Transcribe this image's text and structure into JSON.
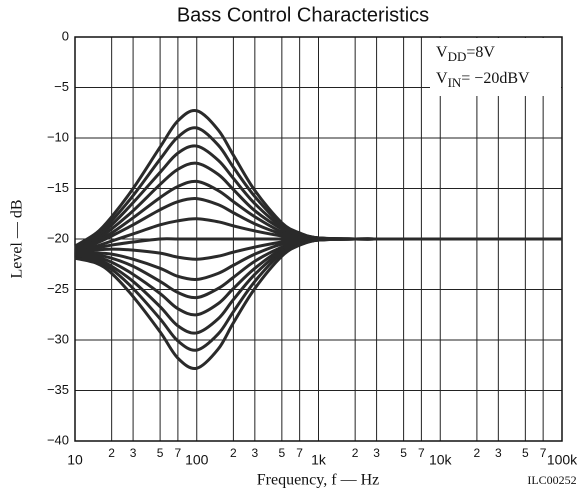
{
  "chart_data": {
    "type": "line",
    "title": "Bass Control Characteristics",
    "xlabel": "Frequency, f — Hz",
    "ylabel": "Level — dB",
    "code": "ILC00252",
    "annotations": [
      {
        "base": "V",
        "sub": "DD",
        "rest": "=8V"
      },
      {
        "base": "V",
        "sub": "IN",
        "rest": "= −20dBV"
      }
    ],
    "xscale": "log",
    "grid": true,
    "color": "#2a2a2a",
    "x": [
      10,
      15,
      20,
      30,
      50,
      70,
      100,
      150,
      200,
      300,
      500,
      700,
      1000,
      2000,
      5000,
      100000
    ],
    "xlim": [
      10,
      100000
    ],
    "xticks": [
      10,
      {
        "value": 20,
        "label": "2"
      },
      {
        "value": 30,
        "label": "3"
      },
      {
        "value": 50,
        "label": "5"
      },
      {
        "value": 70,
        "label": "7"
      },
      100,
      {
        "value": 200,
        "label": "2"
      },
      {
        "value": 300,
        "label": "3"
      },
      {
        "value": 500,
        "label": "5"
      },
      {
        "value": 700,
        "label": "7"
      },
      {
        "value": 1000,
        "label": "1k"
      },
      {
        "value": 2000,
        "label": "2"
      },
      {
        "value": 3000,
        "label": "3"
      },
      {
        "value": 5000,
        "label": "5"
      },
      {
        "value": 7000,
        "label": "7"
      },
      {
        "value": 10000,
        "label": "10k"
      },
      {
        "value": 20000,
        "label": "2"
      },
      {
        "value": 30000,
        "label": "3"
      },
      {
        "value": 50000,
        "label": "5"
      },
      {
        "value": 70000,
        "label": "7"
      },
      {
        "value": 100000,
        "label": "100k"
      }
    ],
    "ylim": [
      -40,
      0
    ],
    "yticks": [
      0,
      {
        "value": -5,
        "label": "−5"
      },
      {
        "value": -10,
        "label": "−10"
      },
      {
        "value": -15,
        "label": "−15"
      },
      {
        "value": -20,
        "label": "−20"
      },
      {
        "value": -25,
        "label": "−25"
      },
      {
        "value": -30,
        "label": "−30"
      },
      {
        "value": -35,
        "label": "−35"
      },
      {
        "value": -40,
        "label": "−40"
      }
    ],
    "series": [
      {
        "values": [
          -20.7,
          -19.4,
          -17.8,
          -15.0,
          -10.9,
          -8.3,
          -7.3,
          -9.2,
          -11.7,
          -15.2,
          -18.4,
          -19.4,
          -19.9,
          -20,
          -20,
          -20
        ]
      },
      {
        "values": [
          -20.8,
          -19.6,
          -18.2,
          -15.7,
          -12.1,
          -9.9,
          -9.0,
          -10.7,
          -12.9,
          -15.8,
          -18.6,
          -19.5,
          -19.9,
          -20,
          -20,
          -20
        ]
      },
      {
        "values": [
          -20.8,
          -19.8,
          -18.6,
          -16.4,
          -13.4,
          -11.5,
          -10.8,
          -12.2,
          -14.0,
          -16.5,
          -18.8,
          -19.5,
          -19.9,
          -20,
          -20,
          -20
        ]
      },
      {
        "values": [
          -20.9,
          -20.0,
          -19.0,
          -17.2,
          -14.6,
          -13.1,
          -12.5,
          -13.6,
          -15.1,
          -17.2,
          -19.0,
          -19.6,
          -19.9,
          -20,
          -20,
          -20
        ]
      },
      {
        "values": [
          -21.0,
          -20.2,
          -19.4,
          -17.9,
          -15.9,
          -14.8,
          -14.3,
          -15.2,
          -16.3,
          -17.8,
          -19.3,
          -19.7,
          -19.9,
          -20,
          -20,
          -20
        ]
      },
      {
        "values": [
          -21.1,
          -20.4,
          -19.7,
          -18.6,
          -17.1,
          -16.3,
          -16.0,
          -16.6,
          -17.4,
          -18.5,
          -19.5,
          -19.8,
          -20.0,
          -20,
          -20,
          -20
        ]
      },
      {
        "values": [
          -21.2,
          -20.7,
          -20.2,
          -19.5,
          -18.6,
          -18.2,
          -18.0,
          -18.3,
          -18.7,
          -19.2,
          -19.7,
          -19.9,
          -20.0,
          -20,
          -20,
          -20
        ]
      },
      {
        "values": [
          -21.3,
          -20.9,
          -20.6,
          -20.3,
          -20,
          -20,
          -20,
          -20,
          -20,
          -20,
          -20,
          -20,
          -20,
          -20,
          -20,
          -20
        ]
      },
      {
        "values": [
          -21.4,
          -21.1,
          -21.0,
          -21.1,
          -21.4,
          -21.8,
          -22.0,
          -21.7,
          -21.3,
          -20.8,
          -20.3,
          -20.1,
          -20.0,
          -20,
          -20,
          -20
        ]
      },
      {
        "values": [
          -21.5,
          -21.4,
          -21.5,
          -22.0,
          -22.9,
          -23.7,
          -24.0,
          -23.4,
          -22.6,
          -21.5,
          -20.5,
          -20.2,
          -20.0,
          -20,
          -20,
          -20
        ]
      },
      {
        "values": [
          -21.6,
          -21.6,
          -21.9,
          -22.7,
          -24.2,
          -25.3,
          -25.8,
          -24.9,
          -23.8,
          -22.2,
          -20.8,
          -20.3,
          -20.1,
          -20,
          -20,
          -20
        ]
      },
      {
        "values": [
          -21.7,
          -21.8,
          -22.3,
          -23.5,
          -25.4,
          -26.9,
          -27.5,
          -26.4,
          -24.9,
          -22.9,
          -21.0,
          -20.4,
          -20.1,
          -20,
          -20,
          -20
        ]
      },
      {
        "values": [
          -21.8,
          -22.0,
          -22.7,
          -24.2,
          -26.7,
          -28.6,
          -29.3,
          -27.9,
          -26.0,
          -23.5,
          -21.2,
          -20.5,
          -20.1,
          -20,
          -20,
          -20
        ]
      },
      {
        "values": [
          -21.9,
          -22.2,
          -23.0,
          -24.9,
          -27.9,
          -30.1,
          -31.0,
          -29.4,
          -27.2,
          -24.2,
          -21.4,
          -20.6,
          -20.1,
          -20,
          -20,
          -20
        ]
      },
      {
        "values": [
          -21.9,
          -22.4,
          -23.4,
          -25.7,
          -29.2,
          -31.8,
          -32.8,
          -30.9,
          -28.3,
          -24.9,
          -21.7,
          -20.6,
          -20.1,
          -20,
          -20,
          -20
        ]
      }
    ]
  }
}
